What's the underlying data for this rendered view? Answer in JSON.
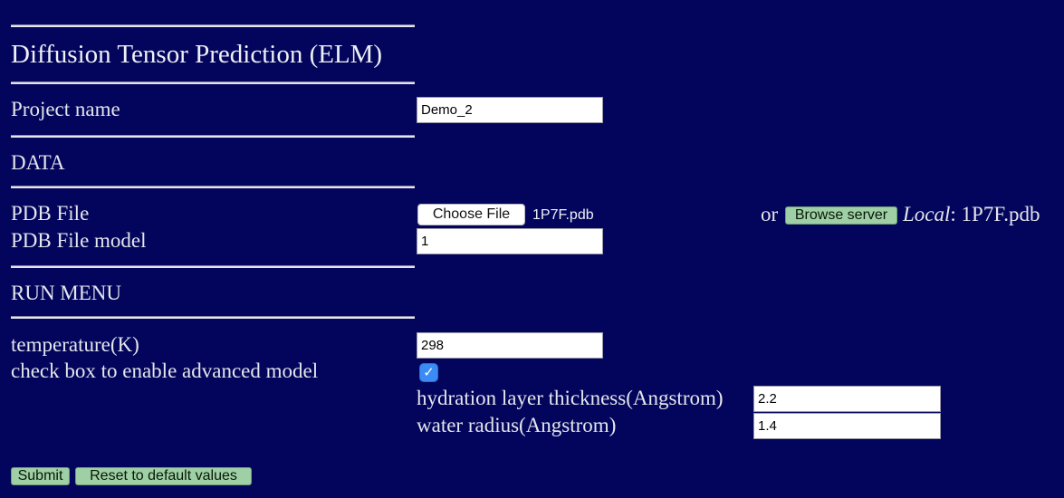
{
  "title": "Diffusion Tensor Prediction (ELM)",
  "project": {
    "label": "Project name",
    "value": "Demo_2"
  },
  "sections": {
    "data": "DATA",
    "run_menu": "RUN MENU"
  },
  "pdb": {
    "file_label": "PDB File",
    "choose_button": "Choose File",
    "chosen_file": "1P7F.pdb",
    "or_text": "or",
    "browse_button": "Browse server",
    "local_label": "Local",
    "local_value": ": 1P7F.pdb",
    "model_label": "PDB File model",
    "model_value": "1"
  },
  "run": {
    "temperature_label": "temperature(K)",
    "temperature_value": "298",
    "advanced_label": "check box to enable advanced model",
    "advanced_checked": true,
    "checkmark": "✓",
    "hydration_label": "hydration layer thickness(Angstrom)",
    "hydration_value": "2.2",
    "water_label": "water radius(Angstrom)",
    "water_value": "1.4"
  },
  "actions": {
    "submit": "Submit",
    "reset": "Reset to default values"
  }
}
